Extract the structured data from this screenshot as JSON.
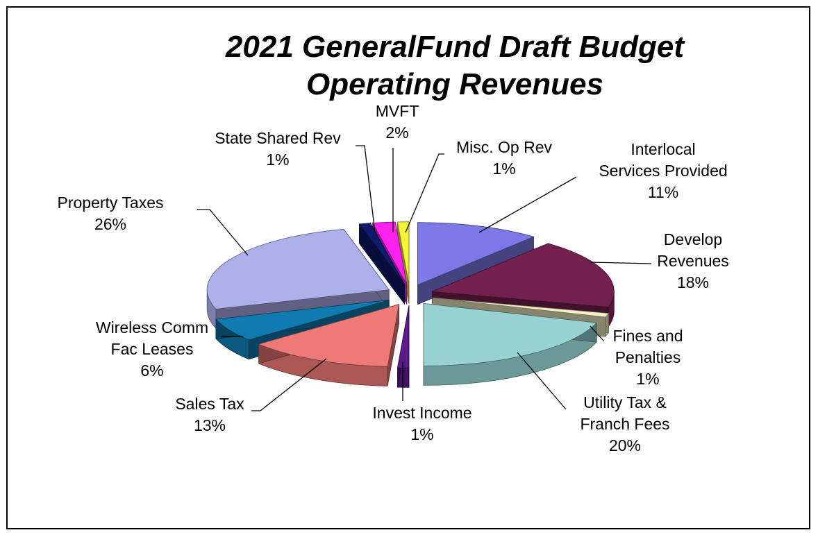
{
  "chart_data": {
    "type": "pie",
    "style": "3d-exploded",
    "title": [
      "2021 GeneralFund Draft Budget",
      "Operating Revenues"
    ],
    "unit": "%",
    "slices": [
      {
        "name": "Interlocal Services Provided",
        "label_lines": [
          "Interlocal",
          "Services Provided"
        ],
        "value": 11,
        "pct": "11%",
        "color": "#7b79e8"
      },
      {
        "name": "Develop Revenues",
        "label_lines": [
          "Develop",
          "Revenues"
        ],
        "value": 18,
        "pct": "18%",
        "color": "#74204f"
      },
      {
        "name": "Fines and Penalties",
        "label_lines": [
          "Fines and",
          "Penalties"
        ],
        "value": 1,
        "pct": "1%",
        "color": "#f6f0c6"
      },
      {
        "name": "Utility Tax & Franch Fees",
        "label_lines": [
          "Utility Tax &",
          "Franch Fees"
        ],
        "value": 20,
        "pct": "20%",
        "color": "#96d3d2"
      },
      {
        "name": "Invest Income",
        "label_lines": [
          "Invest Income"
        ],
        "value": 1,
        "pct": "1%",
        "color": "#5b1a8a"
      },
      {
        "name": "Sales Tax",
        "label_lines": [
          "Sales Tax"
        ],
        "value": 13,
        "pct": "13%",
        "color": "#ee7a78"
      },
      {
        "name": "Wireless Comm Fac Leases",
        "label_lines": [
          "Wireless Comm",
          "Fac Leases"
        ],
        "value": 6,
        "pct": "6%",
        "color": "#0f7bb0"
      },
      {
        "name": "Property Taxes",
        "label_lines": [
          "Property Taxes"
        ],
        "value": 26,
        "pct": "26%",
        "color": "#aeb0ec"
      },
      {
        "name": "State Shared Rev",
        "label_lines": [
          "State Shared Rev"
        ],
        "value": 1,
        "pct": "1%",
        "color": "#0d1a6e"
      },
      {
        "name": "MVFT",
        "label_lines": [
          "MVFT"
        ],
        "value": 2,
        "pct": "2%",
        "color": "#ff22ee"
      },
      {
        "name": "Misc. Op Rev",
        "label_lines": [
          "Misc. Op Rev"
        ],
        "value": 1,
        "pct": "1%",
        "color": "#f5f23a"
      }
    ]
  }
}
